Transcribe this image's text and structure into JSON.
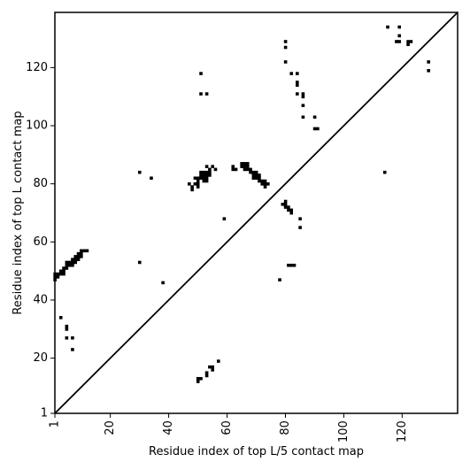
{
  "chart_data": {
    "type": "scatter",
    "title": "",
    "xlabel": "Residue index of top L/5 contact map",
    "ylabel": "Residue index of top L contact map",
    "xlim": [
      1,
      139
    ],
    "ylim": [
      1,
      139
    ],
    "x_ticks": [
      1,
      20,
      40,
      60,
      80,
      100,
      120
    ],
    "y_ticks": [
      1,
      20,
      40,
      60,
      80,
      100,
      120
    ],
    "x_tick_labels": [
      "1",
      "20",
      "40",
      "60",
      "80",
      "100",
      "120"
    ],
    "y_tick_labels": [
      "1",
      "20",
      "40",
      "60",
      "80",
      "100",
      "120"
    ],
    "x_tick_rotation": -90,
    "diagonal": {
      "from": [
        1,
        1
      ],
      "to": [
        139,
        139
      ]
    },
    "grid": false,
    "marker_color": "#000000",
    "point_groups": [
      {
        "name": "",
        "points": [
          [
            1,
            47
          ],
          [
            1,
            48
          ],
          [
            1,
            49
          ],
          [
            2,
            48
          ],
          [
            2,
            49
          ],
          [
            3,
            49
          ],
          [
            3,
            50
          ],
          [
            4,
            50
          ],
          [
            4,
            51
          ],
          [
            4,
            49
          ],
          [
            5,
            51
          ],
          [
            5,
            52
          ],
          [
            5,
            53
          ],
          [
            6,
            52
          ],
          [
            6,
            53
          ],
          [
            7,
            52
          ],
          [
            7,
            53
          ],
          [
            7,
            54
          ],
          [
            8,
            53
          ],
          [
            8,
            54
          ],
          [
            8,
            55
          ],
          [
            9,
            54
          ],
          [
            9,
            55
          ],
          [
            9,
            56
          ],
          [
            10,
            55
          ],
          [
            10,
            56
          ],
          [
            10,
            57
          ],
          [
            11,
            57
          ],
          [
            12,
            57
          ],
          [
            3,
            34
          ],
          [
            5,
            30
          ],
          [
            5,
            31
          ],
          [
            5,
            27
          ],
          [
            7,
            27
          ],
          [
            7,
            23
          ]
        ]
      },
      {
        "name": "",
        "points": [
          [
            30,
            84
          ],
          [
            34,
            82
          ],
          [
            30,
            53
          ],
          [
            38,
            46
          ],
          [
            59,
            68
          ]
        ]
      },
      {
        "name": "",
        "points": [
          [
            47,
            80
          ],
          [
            48,
            79
          ],
          [
            48,
            78
          ],
          [
            49,
            80
          ],
          [
            49,
            82
          ],
          [
            50,
            79
          ],
          [
            50,
            80
          ],
          [
            50,
            81
          ],
          [
            50,
            82
          ],
          [
            51,
            82
          ],
          [
            51,
            83
          ],
          [
            51,
            84
          ],
          [
            52,
            81
          ],
          [
            52,
            82
          ],
          [
            52,
            83
          ],
          [
            52,
            84
          ],
          [
            53,
            81
          ],
          [
            53,
            82
          ],
          [
            53,
            83
          ],
          [
            53,
            84
          ],
          [
            53,
            86
          ],
          [
            54,
            83
          ],
          [
            54,
            84
          ],
          [
            54,
            85
          ],
          [
            55,
            86
          ],
          [
            56,
            85
          ]
        ]
      },
      {
        "name": "",
        "points": [
          [
            62,
            85
          ],
          [
            62,
            86
          ],
          [
            63,
            85
          ],
          [
            65,
            86
          ],
          [
            65,
            87
          ],
          [
            66,
            85
          ],
          [
            66,
            86
          ],
          [
            66,
            87
          ],
          [
            67,
            85
          ],
          [
            67,
            86
          ],
          [
            67,
            87
          ],
          [
            68,
            84
          ],
          [
            68,
            85
          ],
          [
            69,
            82
          ],
          [
            69,
            83
          ],
          [
            69,
            84
          ],
          [
            70,
            82
          ],
          [
            70,
            83
          ],
          [
            70,
            84
          ],
          [
            71,
            81
          ],
          [
            71,
            82
          ],
          [
            71,
            83
          ],
          [
            72,
            80
          ],
          [
            72,
            81
          ],
          [
            73,
            79
          ],
          [
            73,
            80
          ],
          [
            73,
            81
          ],
          [
            74,
            80
          ]
        ]
      },
      {
        "name": "",
        "points": [
          [
            78,
            47
          ],
          [
            79,
            73
          ],
          [
            80,
            73
          ],
          [
            80,
            74
          ],
          [
            80,
            72
          ],
          [
            81,
            71
          ],
          [
            81,
            72
          ],
          [
            82,
            71
          ],
          [
            82,
            70
          ],
          [
            81,
            52
          ],
          [
            82,
            52
          ],
          [
            83,
            52
          ],
          [
            85,
            65
          ],
          [
            85,
            68
          ]
        ]
      },
      {
        "name": "",
        "points": [
          [
            50,
            12
          ],
          [
            50,
            13
          ],
          [
            51,
            13
          ],
          [
            53,
            14
          ],
          [
            53,
            15
          ],
          [
            54,
            17
          ],
          [
            55,
            16
          ],
          [
            55,
            17
          ],
          [
            57,
            19
          ]
        ]
      },
      {
        "name": "",
        "points": [
          [
            51,
            111
          ],
          [
            51,
            118
          ],
          [
            53,
            111
          ],
          [
            80,
            129
          ],
          [
            80,
            127
          ],
          [
            80,
            122
          ],
          [
            82,
            118
          ],
          [
            84,
            118
          ],
          [
            84,
            115
          ],
          [
            84,
            114
          ],
          [
            84,
            111
          ],
          [
            86,
            111
          ],
          [
            86,
            110
          ],
          [
            86,
            107
          ],
          [
            86,
            103
          ],
          [
            90,
            103
          ],
          [
            90,
            99
          ],
          [
            91,
            99
          ]
        ]
      },
      {
        "name": "",
        "points": [
          [
            115,
            134
          ],
          [
            119,
            134
          ],
          [
            119,
            131
          ],
          [
            118,
            129
          ],
          [
            119,
            129
          ],
          [
            122,
            129
          ],
          [
            123,
            129
          ],
          [
            122,
            128
          ],
          [
            129,
            122
          ],
          [
            129,
            119
          ],
          [
            114,
            84
          ]
        ]
      }
    ]
  }
}
